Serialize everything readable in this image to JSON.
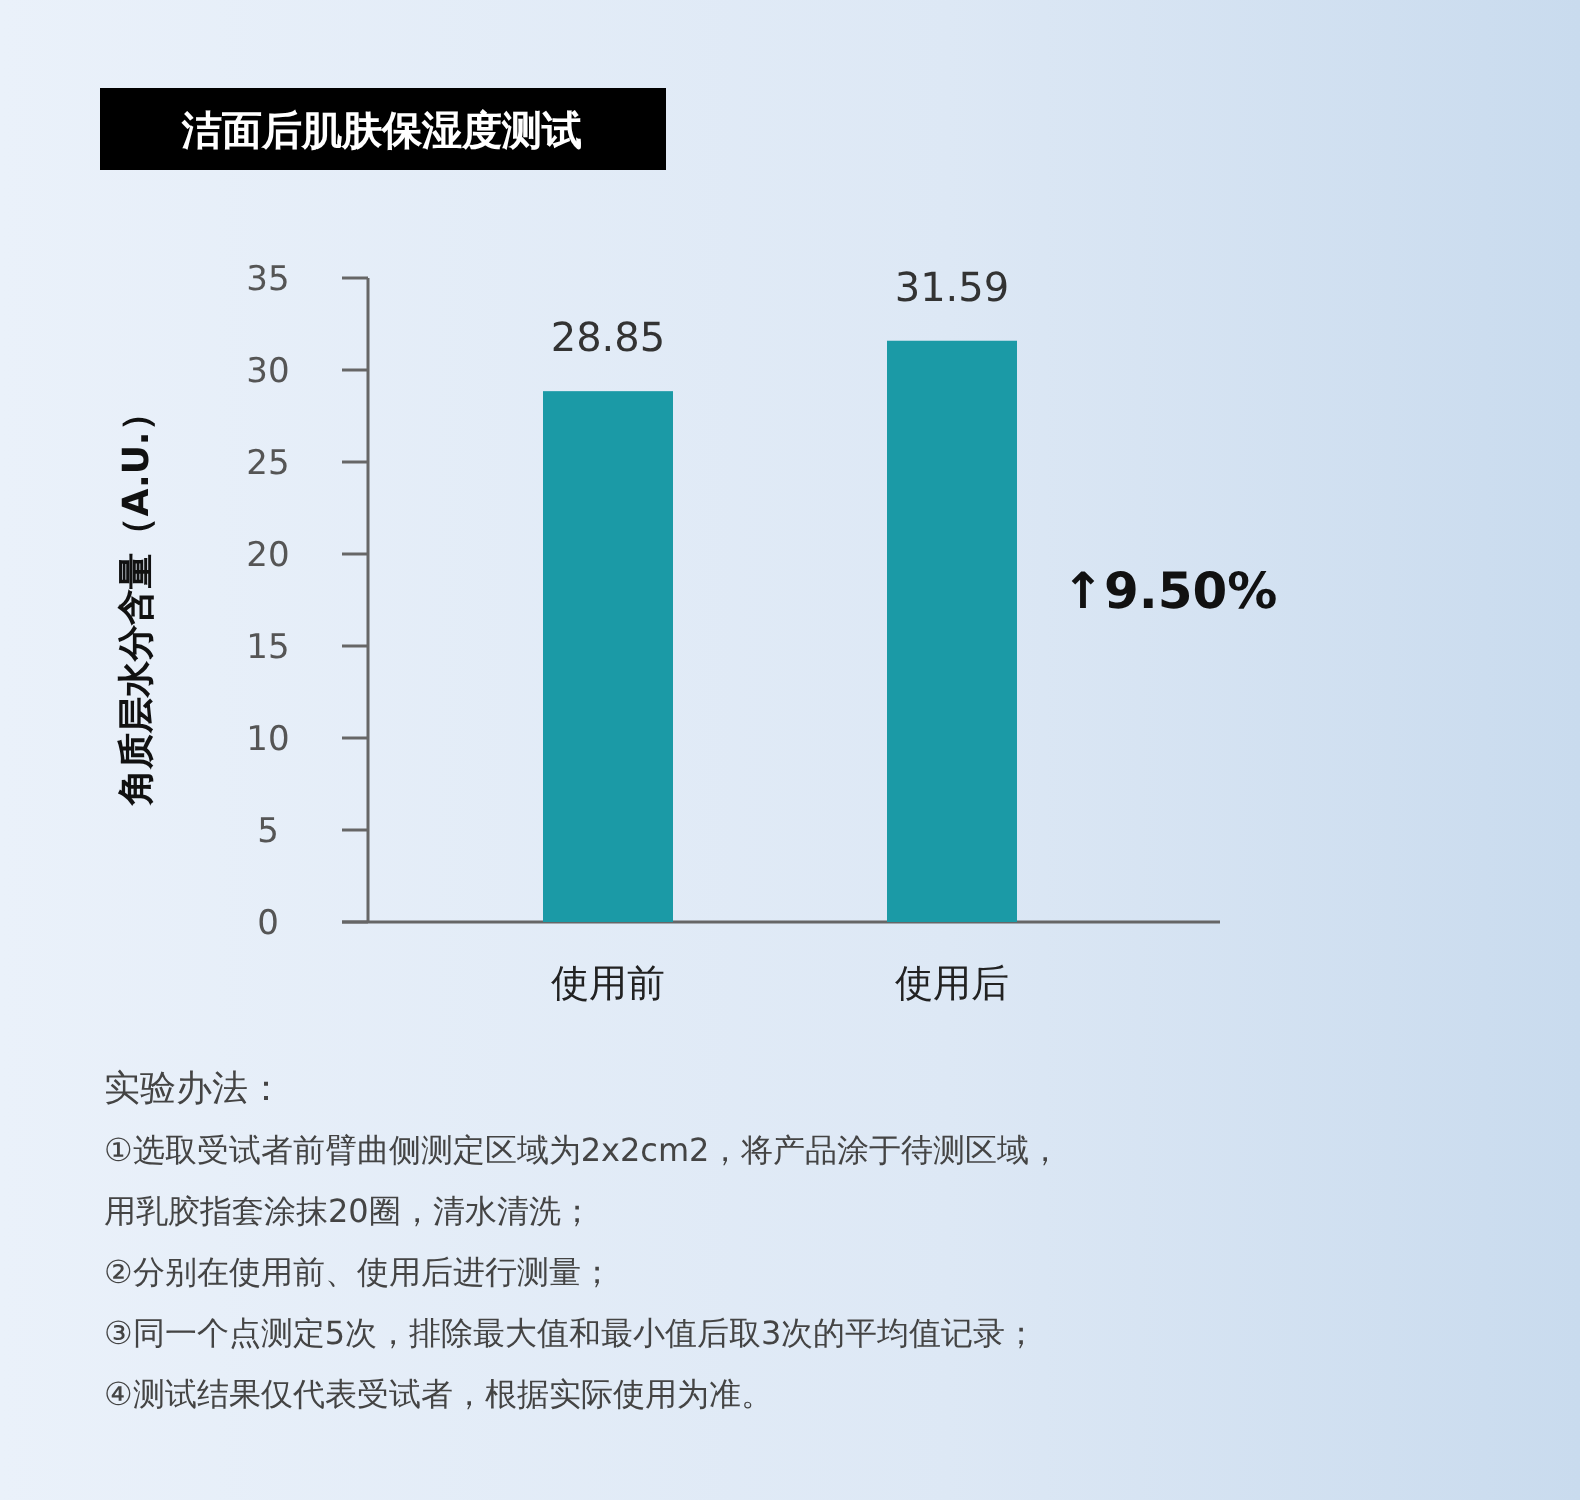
{
  "chart_data": {
    "type": "bar",
    "title": "洁面后肌肤保湿度测试",
    "ylabel": "角质层水分含量（A.U.）",
    "categories": [
      "使用前",
      "使用后"
    ],
    "values": [
      28.85,
      31.59
    ],
    "color": "#1b9aa6",
    "ylim": [
      0,
      35
    ],
    "yticks": [
      0,
      5,
      10,
      15,
      20,
      25,
      30,
      35
    ],
    "data_labels": true,
    "annotations": [
      "↑9.50%",
      "实验办法：",
      "①选取受试者前臂曲侧测定区域为2x2cm2，将产品涂于待测区域，",
      "用乳胶指套涂抹20圈，清水清洗；",
      "②分别在使用前、使用后进行测量；",
      "③同一个点测定5次，排除最大值和最小值后取3次的平均值记录；",
      "④测试结果仅代表受试者，根据实际使用为准。"
    ]
  }
}
